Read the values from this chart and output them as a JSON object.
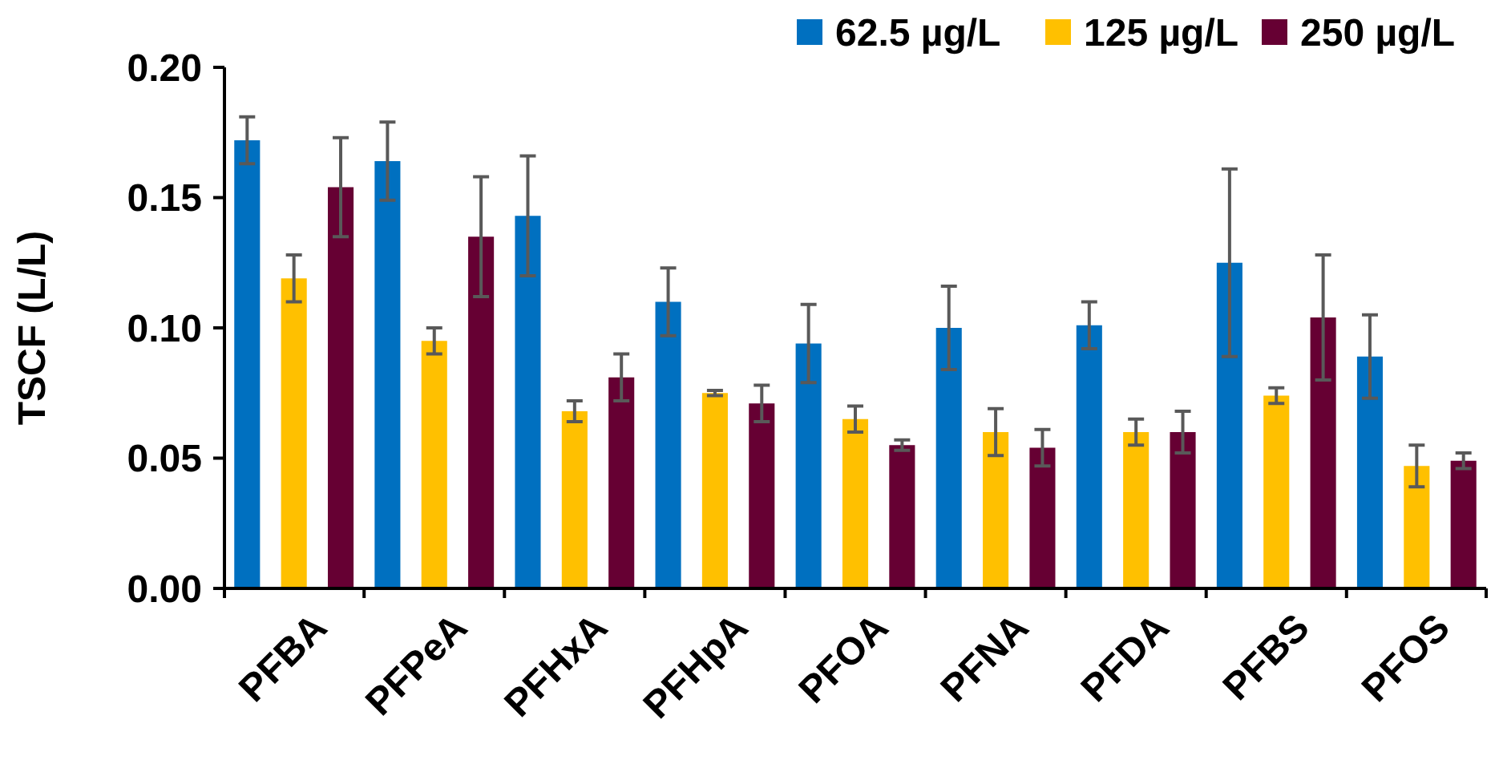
{
  "chart_data": {
    "type": "bar",
    "ylabel": "TSCF (L/L)",
    "categories": [
      "PFBA",
      "PFPeA",
      "PFHxA",
      "PFHpA",
      "PFOA",
      "PFNA",
      "PFDA",
      "PFBS",
      "PFOS"
    ],
    "series": [
      {
        "name": "62.5 µg/L",
        "color": "#0070c0",
        "values": [
          0.172,
          0.164,
          0.143,
          0.11,
          0.094,
          0.1,
          0.101,
          0.125,
          0.089
        ],
        "errors": [
          0.009,
          0.015,
          0.023,
          0.013,
          0.015,
          0.016,
          0.009,
          0.036,
          0.016
        ]
      },
      {
        "name": "125 µg/L",
        "color": "#ffc000",
        "values": [
          0.119,
          0.095,
          0.068,
          0.075,
          0.065,
          0.06,
          0.06,
          0.074,
          0.047
        ],
        "errors": [
          0.009,
          0.005,
          0.004,
          0.001,
          0.005,
          0.009,
          0.005,
          0.003,
          0.008
        ]
      },
      {
        "name": "250 µg/L",
        "color": "#660033",
        "values": [
          0.154,
          0.135,
          0.081,
          0.071,
          0.055,
          0.054,
          0.06,
          0.104,
          0.049
        ],
        "errors": [
          0.019,
          0.023,
          0.009,
          0.007,
          0.002,
          0.007,
          0.008,
          0.024,
          0.003
        ]
      }
    ],
    "ylim": [
      0,
      0.2
    ],
    "yticks": [
      {
        "value": 0,
        "label": "0.00"
      },
      {
        "value": 0.05,
        "label": "0.05"
      },
      {
        "value": 0.1,
        "label": "0.10"
      },
      {
        "value": 0.15,
        "label": "0.15"
      },
      {
        "value": 0.2,
        "label": "0.20"
      }
    ],
    "grid": false,
    "legend": "top right"
  }
}
